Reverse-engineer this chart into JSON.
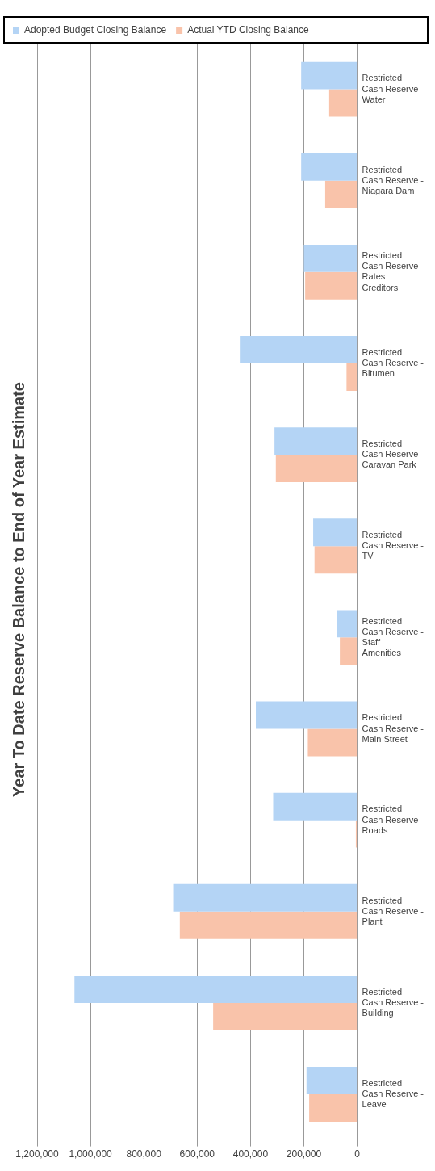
{
  "chart_data": {
    "type": "bar",
    "orientation": "horizontal",
    "title": "Year To Date Reserve Balance to End of Year Estimate",
    "categories": [
      "Restricted Cash Reserve - Water",
      "Restricted Cash Reserve - Niagara Dam",
      "Restricted Cash Reserve - Rates Creditors",
      "Restricted Cash Reserve - Bitumen",
      "Restricted Cash Reserve - Caravan Park",
      "Restricted Cash Reserve - TV",
      "Restricted Cash Reserve - Staff Amenities",
      "Restricted Cash Reserve - Main Street",
      "Restricted Cash Reserve - Roads",
      "Restricted Cash Reserve - Plant",
      "Restricted Cash Reserve - Building",
      "Restricted Cash Reserve - Leave"
    ],
    "series": [
      {
        "name": "Adopted Budget Closing Balance",
        "color": "#b4d4f5",
        "values": [
          210000,
          210000,
          200000,
          440000,
          310000,
          165000,
          75000,
          380000,
          315000,
          690000,
          1060000,
          190000
        ]
      },
      {
        "name": "Actual YTD Closing Balance",
        "color": "#f9c3aa",
        "values": [
          105000,
          120000,
          195000,
          40000,
          305000,
          160000,
          65000,
          185000,
          5000,
          665000,
          540000,
          180000
        ]
      }
    ],
    "xlim": [
      1200000,
      0
    ],
    "xticks": [
      {
        "value": 0,
        "label": "0"
      },
      {
        "value": 200000,
        "label": "200,000"
      },
      {
        "value": 400000,
        "label": "400,000"
      },
      {
        "value": 600000,
        "label": "600,000"
      },
      {
        "value": 800000,
        "label": "800,000"
      },
      {
        "value": 1000000,
        "label": "1,000,000"
      },
      {
        "value": 1200000,
        "label": "1,200,000"
      }
    ],
    "grid": "x",
    "legend": "top left"
  }
}
